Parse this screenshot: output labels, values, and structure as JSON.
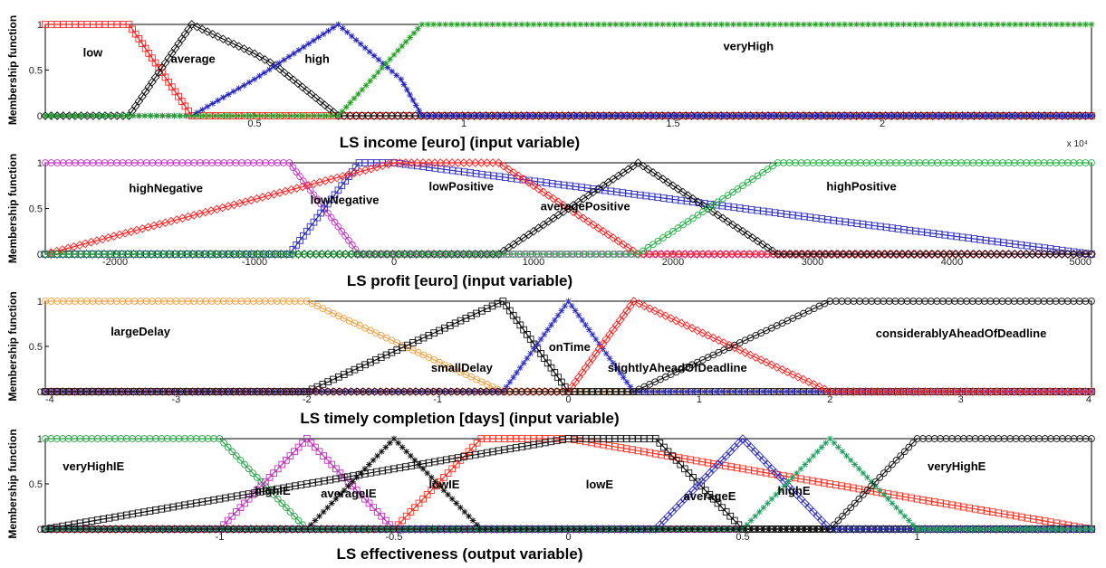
{
  "chart_data": [
    {
      "type": "line",
      "title": "",
      "xlabel": "LS income [euro] (input variable)",
      "ylabel": "Membership function",
      "xlim": [
        0,
        25000
      ],
      "ylim": [
        0,
        1
      ],
      "x_tick_values": [
        5000,
        10000,
        15000,
        20000
      ],
      "x_tick_labels": [
        "0.5",
        "1",
        "1.5",
        "2"
      ],
      "x_multiplier": "x 10⁴",
      "y_ticks": [
        0,
        0.5,
        1
      ],
      "series": [
        {
          "name": "low",
          "color": "#ff2020",
          "marker": "square",
          "x": [
            0,
            1000,
            2000,
            3500,
            25000
          ],
          "y": [
            1,
            1,
            1,
            0,
            0
          ]
        },
        {
          "name": "average",
          "color": "#111111",
          "marker": "diamond",
          "x": [
            0,
            2000,
            3500,
            5000,
            5500,
            7000,
            8000,
            25000
          ],
          "y": [
            0,
            0,
            1,
            0.68,
            0.55,
            0,
            0,
            0
          ]
        },
        {
          "name": "high",
          "color": "#2020c0",
          "marker": "star",
          "x": [
            0,
            3500,
            5000,
            7000,
            8500,
            9000,
            25000
          ],
          "y": [
            0,
            0,
            0.4,
            1,
            0.4,
            0,
            0
          ]
        },
        {
          "name": "veryHigh",
          "color": "#20a020",
          "marker": "star",
          "x": [
            0,
            7000,
            9000,
            25000
          ],
          "y": [
            0,
            0,
            1,
            1
          ]
        }
      ],
      "labels": [
        {
          "text": "low",
          "x": 900,
          "y": 0.65
        },
        {
          "text": "average",
          "x": 3000,
          "y": 0.58
        },
        {
          "text": "high",
          "x": 6200,
          "y": 0.58
        },
        {
          "text": "veryHigh",
          "x": 16200,
          "y": 0.72
        }
      ]
    },
    {
      "type": "line",
      "title": "",
      "xlabel": "LS profit [euro] (input variable)",
      "ylabel": "Membership function",
      "xlim": [
        -2500,
        5000
      ],
      "ylim": [
        0,
        1
      ],
      "x_tick_values": [
        -2000,
        -1000,
        0,
        1000,
        2000,
        3000,
        4000,
        5000
      ],
      "x_tick_labels": [
        "-2000",
        "-1000",
        "0",
        "1000",
        "2000",
        "3000",
        "4000",
        "5000"
      ],
      "y_ticks": [
        0,
        0.5,
        1
      ],
      "series": [
        {
          "name": "highNegative",
          "color": "#c030c0",
          "marker": "circle",
          "x": [
            -2500,
            -750,
            -250,
            5000
          ],
          "y": [
            1,
            1,
            0,
            0
          ]
        },
        {
          "name": "lowNegative",
          "color": "#3030c0",
          "marker": "square",
          "x": [
            -2500,
            -750,
            -250,
            0,
            5000
          ],
          "y": [
            0,
            0,
            1,
            1,
            0
          ]
        },
        {
          "name": "lowPositive",
          "color": "#ff2020",
          "marker": "diamond",
          "x": [
            -2500,
            0,
            750,
            1750,
            5000
          ],
          "y": [
            0,
            1,
            1,
            0,
            0
          ]
        },
        {
          "name": "averagePositive",
          "color": "#111111",
          "marker": "diamond",
          "x": [
            -2500,
            750,
            1750,
            2750,
            5000
          ],
          "y": [
            0,
            0,
            1,
            0,
            0
          ]
        },
        {
          "name": "highPositive",
          "color": "#20b040",
          "marker": "circle",
          "x": [
            -2500,
            1750,
            2750,
            5000
          ],
          "y": [
            0,
            0,
            1,
            1
          ]
        }
      ],
      "labels": [
        {
          "text": "highNegative",
          "x": -1900,
          "y": 0.68
        },
        {
          "text": "lowNegative",
          "x": -600,
          "y": 0.55
        },
        {
          "text": "lowPositive",
          "x": 250,
          "y": 0.7
        },
        {
          "text": "averagePositive",
          "x": 1050,
          "y": 0.48
        },
        {
          "text": "highPositive",
          "x": 3100,
          "y": 0.7
        }
      ]
    },
    {
      "type": "line",
      "title": "",
      "xlabel": "LS timely completion [days] (input variable)",
      "ylabel": "Membership function",
      "xlim": [
        -4,
        4
      ],
      "ylim": [
        0,
        1
      ],
      "x_tick_values": [
        -4,
        -3,
        -2,
        -1,
        0,
        1,
        2,
        3,
        4
      ],
      "x_tick_labels": [
        "-4",
        "-3",
        "-2",
        "-1",
        "0",
        "1",
        "2",
        "3",
        "4"
      ],
      "y_ticks": [
        0,
        0.5,
        1
      ],
      "series": [
        {
          "name": "largeDelay",
          "color": "#f0a040",
          "marker": "circle",
          "x": [
            -4,
            -2,
            -0.5,
            4
          ],
          "y": [
            1,
            1,
            0,
            0
          ]
        },
        {
          "name": "smallDelay",
          "color": "#111111",
          "marker": "square",
          "x": [
            -4,
            -2,
            -0.5,
            0,
            4
          ],
          "y": [
            0,
            0,
            1,
            0,
            0
          ]
        },
        {
          "name": "onTime",
          "color": "#3030c0",
          "marker": "star",
          "x": [
            -4,
            -0.5,
            0,
            0.5,
            4
          ],
          "y": [
            0,
            0,
            1,
            0,
            0
          ]
        },
        {
          "name": "slightlyAheadOfDeadline",
          "color": "#ff2020",
          "marker": "diamond",
          "x": [
            -4,
            0,
            0.5,
            2,
            4
          ],
          "y": [
            0,
            0,
            1,
            0,
            0
          ]
        },
        {
          "name": "considerablyAheadOfDeadline",
          "color": "#111111",
          "marker": "circle",
          "x": [
            -4,
            0.5,
            2,
            4
          ],
          "y": [
            0,
            0,
            1,
            1
          ]
        }
      ],
      "labels": [
        {
          "text": "largeDelay",
          "x": -3.5,
          "y": 0.62
        },
        {
          "text": "smallDelay",
          "x": -1.05,
          "y": 0.22
        },
        {
          "text": "onTime",
          "x": -0.15,
          "y": 0.45
        },
        {
          "text": "slightlyAheadOfDeadline",
          "x": 0.3,
          "y": 0.22
        },
        {
          "text": "considerablyAheadOfDeadline",
          "x": 2.35,
          "y": 0.6
        }
      ]
    },
    {
      "type": "line",
      "title": "",
      "xlabel": "LS effectiveness  (output variable)",
      "ylabel": "Membership function",
      "xlim": [
        -1.5,
        1.5
      ],
      "ylim": [
        0,
        1
      ],
      "x_tick_values": [
        -1,
        -0.5,
        0,
        0.5,
        1
      ],
      "x_tick_labels": [
        "-1",
        "-0.5",
        "0",
        "0.5",
        "1"
      ],
      "y_ticks": [
        0,
        0.5,
        1
      ],
      "series": [
        {
          "name": "veryHighIE",
          "color": "#20a040",
          "marker": "circle",
          "x": [
            -1.5,
            -1,
            -0.75,
            1.5
          ],
          "y": [
            1,
            1,
            0,
            0
          ]
        },
        {
          "name": "highIE",
          "color": "#c030c0",
          "marker": "square",
          "x": [
            -1.5,
            -1,
            -0.75,
            -0.5,
            1.5
          ],
          "y": [
            0,
            0,
            1,
            0,
            0
          ]
        },
        {
          "name": "averageIE",
          "color": "#111111",
          "marker": "star",
          "x": [
            -1.5,
            -0.75,
            -0.5,
            -0.25,
            1.5
          ],
          "y": [
            0,
            0,
            1,
            0,
            0
          ]
        },
        {
          "name": "lowIE",
          "color": "#ff3020",
          "marker": "square",
          "x": [
            -1.5,
            -0.5,
            -0.25,
            0,
            1.5
          ],
          "y": [
            0,
            0,
            1,
            1,
            0
          ]
        },
        {
          "name": "lowE",
          "color": "#111111",
          "marker": "square",
          "x": [
            -1.5,
            0,
            0.25,
            0.5,
            1.5
          ],
          "y": [
            0,
            1,
            1,
            0,
            0
          ]
        },
        {
          "name": "averageE",
          "color": "#3030c0",
          "marker": "diamond",
          "x": [
            -1.5,
            0.25,
            0.5,
            0.75,
            1.5
          ],
          "y": [
            0,
            0,
            1,
            0,
            0
          ]
        },
        {
          "name": "highE",
          "color": "#20a060",
          "marker": "star",
          "x": [
            -1.5,
            0.5,
            0.75,
            1,
            1.5
          ],
          "y": [
            0,
            0,
            1,
            0,
            0
          ]
        },
        {
          "name": "veryHighE",
          "color": "#111111",
          "marker": "circle",
          "x": [
            -1.5,
            0.75,
            1,
            1.5
          ],
          "y": [
            0,
            0,
            1,
            1
          ]
        }
      ],
      "labels": [
        {
          "text": "veryHighIE",
          "x": -1.45,
          "y": 0.65
        },
        {
          "text": "highIE",
          "x": -0.9,
          "y": 0.38
        },
        {
          "text": "averageIE",
          "x": -0.71,
          "y": 0.35
        },
        {
          "text": "lowIE",
          "x": -0.4,
          "y": 0.45
        },
        {
          "text": "lowE",
          "x": 0.05,
          "y": 0.45
        },
        {
          "text": "averageE",
          "x": 0.33,
          "y": 0.32
        },
        {
          "text": "highE",
          "x": 0.6,
          "y": 0.38
        },
        {
          "text": "veryHighE",
          "x": 1.03,
          "y": 0.65
        }
      ]
    }
  ]
}
